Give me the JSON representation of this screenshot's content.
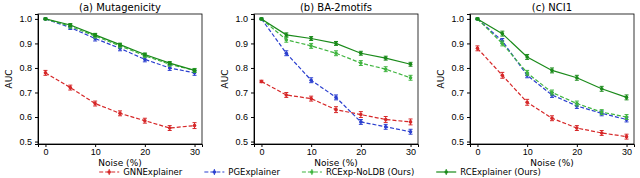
{
  "chart_data": [
    {
      "type": "line",
      "title": "(a) Mutagenicity",
      "xlabel": "Noise (%)",
      "ylabel": "AUC",
      "x": [
        0,
        5,
        10,
        15,
        20,
        25,
        30
      ],
      "xlim": [
        -1.5,
        31.5
      ],
      "xticks": [
        0,
        10,
        20,
        30
      ],
      "ylim": [
        0.49,
        1.02
      ],
      "yticks": [
        {
          "value": 0.5,
          "label": "0.5"
        },
        {
          "value": 0.6,
          "label": "0.6"
        },
        {
          "value": 0.7,
          "label": "0.7"
        },
        {
          "value": 0.8,
          "label": "0.8"
        },
        {
          "value": 0.9,
          "label": "0.9"
        },
        {
          "value": 1.0,
          "label": "1.0"
        }
      ],
      "legend": "bottom",
      "series": [
        {
          "name": "GNNExplainer",
          "color": "#d62728",
          "line_style": "dashed",
          "marker": "circle",
          "values": [
            0.78,
            0.72,
            0.655,
            0.615,
            0.585,
            0.555,
            0.565
          ],
          "errors": [
            0.01,
            0.01,
            0.01,
            0.01,
            0.01,
            0.01,
            0.012
          ]
        },
        {
          "name": "PGExplainer",
          "color": "#2b3fcf",
          "line_style": "dashed",
          "marker": "circle",
          "values": [
            1.0,
            0.965,
            0.92,
            0.88,
            0.835,
            0.8,
            0.78
          ],
          "errors": [
            0.003,
            0.008,
            0.01,
            0.01,
            0.01,
            0.01,
            0.01
          ]
        },
        {
          "name": "RCExp-NoLDB (Ours)",
          "color": "#3fb43f",
          "line_style": "dashed",
          "marker": "circle",
          "values": [
            1.0,
            0.97,
            0.93,
            0.89,
            0.85,
            0.815,
            0.79
          ],
          "errors": [
            0.003,
            0.008,
            0.008,
            0.008,
            0.008,
            0.008,
            0.008
          ]
        },
        {
          "name": "RCExplainer (Ours)",
          "color": "#1a8a1a",
          "line_style": "solid",
          "marker": "circle",
          "values": [
            1.0,
            0.975,
            0.935,
            0.895,
            0.855,
            0.82,
            0.79
          ],
          "errors": [
            0.003,
            0.006,
            0.006,
            0.006,
            0.006,
            0.006,
            0.006
          ]
        }
      ]
    },
    {
      "type": "line",
      "title": "(b) BA-2motifs",
      "xlabel": "Noise (%)",
      "ylabel": "AUC",
      "x": [
        0,
        5,
        10,
        15,
        20,
        25,
        30
      ],
      "xlim": [
        -1.5,
        31.5
      ],
      "xticks": [
        0,
        10,
        20,
        30
      ],
      "ylim": [
        0.49,
        1.02
      ],
      "yticks": [
        {
          "value": 0.5,
          "label": "0.5"
        },
        {
          "value": 0.6,
          "label": "0.6"
        },
        {
          "value": 0.7,
          "label": "0.7"
        },
        {
          "value": 0.8,
          "label": "0.8"
        },
        {
          "value": 0.9,
          "label": "0.9"
        },
        {
          "value": 1.0,
          "label": "1.0"
        }
      ],
      "series": [
        {
          "name": "GNNExplainer",
          "color": "#d62728",
          "line_style": "dashed",
          "marker": "circle",
          "values": [
            0.745,
            0.69,
            0.675,
            0.63,
            0.61,
            0.59,
            0.58
          ],
          "errors": [
            0.005,
            0.01,
            0.01,
            0.012,
            0.012,
            0.012,
            0.012
          ]
        },
        {
          "name": "PGExplainer",
          "color": "#2b3fcf",
          "line_style": "dashed",
          "marker": "circle",
          "values": [
            1.0,
            0.86,
            0.75,
            0.68,
            0.58,
            0.56,
            0.54
          ],
          "errors": [
            0.003,
            0.01,
            0.01,
            0.01,
            0.01,
            0.01,
            0.01
          ]
        },
        {
          "name": "RCExp-NoLDB (Ours)",
          "color": "#3fb43f",
          "line_style": "dashed",
          "marker": "circle",
          "values": [
            1.0,
            0.915,
            0.89,
            0.86,
            0.82,
            0.795,
            0.76
          ],
          "errors": [
            0.003,
            0.01,
            0.01,
            0.01,
            0.01,
            0.01,
            0.01
          ]
        },
        {
          "name": "RCExplainer (Ours)",
          "color": "#1a8a1a",
          "line_style": "solid",
          "marker": "circle",
          "values": [
            1.0,
            0.935,
            0.92,
            0.9,
            0.86,
            0.84,
            0.815
          ],
          "errors": [
            0.003,
            0.008,
            0.008,
            0.008,
            0.008,
            0.008,
            0.008
          ]
        }
      ]
    },
    {
      "type": "line",
      "title": "(c) NCI1",
      "xlabel": "Noise (%)",
      "ylabel": "AUC",
      "x": [
        0,
        5,
        10,
        15,
        20,
        25,
        30
      ],
      "xlim": [
        -1.5,
        31.5
      ],
      "xticks": [
        0,
        10,
        20,
        30
      ],
      "ylim": [
        0.49,
        1.02
      ],
      "yticks": [
        {
          "value": 0.5,
          "label": "0.5"
        },
        {
          "value": 0.6,
          "label": "0.6"
        },
        {
          "value": 0.7,
          "label": "0.7"
        },
        {
          "value": 0.8,
          "label": "0.8"
        },
        {
          "value": 0.9,
          "label": "0.9"
        },
        {
          "value": 1.0,
          "label": "1.0"
        }
      ],
      "series": [
        {
          "name": "GNNExplainer",
          "color": "#d62728",
          "line_style": "dashed",
          "marker": "circle",
          "values": [
            0.88,
            0.77,
            0.66,
            0.595,
            0.555,
            0.535,
            0.52
          ],
          "errors": [
            0.01,
            0.012,
            0.012,
            0.01,
            0.01,
            0.01,
            0.01
          ]
        },
        {
          "name": "PGExplainer",
          "color": "#2b3fcf",
          "line_style": "dashed",
          "marker": "circle",
          "values": [
            1.0,
            0.91,
            0.77,
            0.69,
            0.645,
            0.615,
            0.59
          ],
          "errors": [
            0.003,
            0.01,
            0.01,
            0.01,
            0.01,
            0.01,
            0.01
          ]
        },
        {
          "name": "RCExp-NoLDB (Ours)",
          "color": "#3fb43f",
          "line_style": "dashed",
          "marker": "circle",
          "values": [
            1.0,
            0.9,
            0.78,
            0.7,
            0.655,
            0.62,
            0.6
          ],
          "errors": [
            0.003,
            0.01,
            0.01,
            0.01,
            0.01,
            0.01,
            0.01
          ]
        },
        {
          "name": "RCExplainer (Ours)",
          "color": "#1a8a1a",
          "line_style": "solid",
          "marker": "circle",
          "values": [
            1.0,
            0.94,
            0.845,
            0.79,
            0.76,
            0.715,
            0.68
          ],
          "errors": [
            0.003,
            0.01,
            0.01,
            0.01,
            0.01,
            0.01,
            0.01
          ]
        }
      ]
    }
  ]
}
